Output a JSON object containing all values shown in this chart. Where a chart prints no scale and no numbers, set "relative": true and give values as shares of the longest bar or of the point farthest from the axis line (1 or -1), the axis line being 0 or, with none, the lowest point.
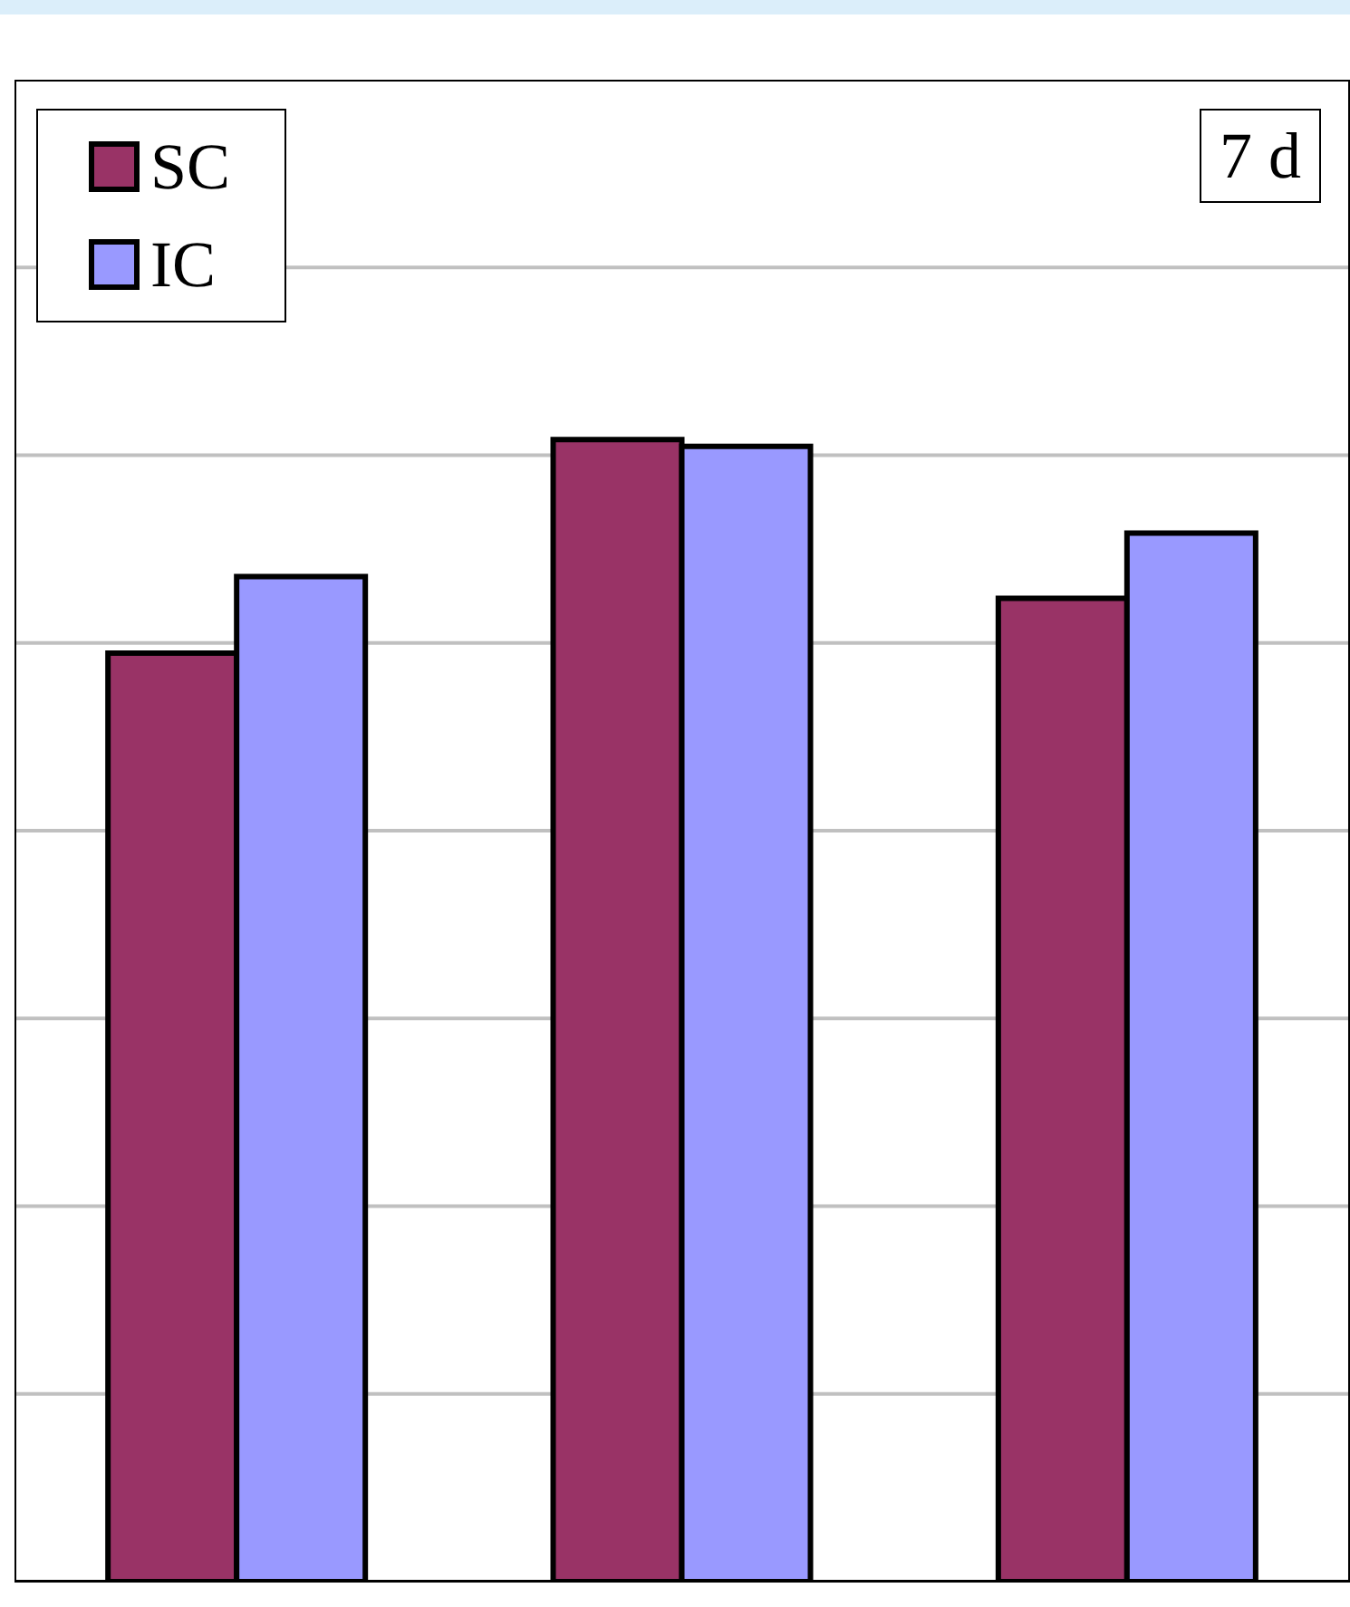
{
  "chart_data": {
    "type": "bar",
    "relative": true,
    "categories": [
      null,
      null,
      null
    ],
    "series": [
      {
        "name": "SC",
        "color": "#993366",
        "values": [
          0.813,
          1,
          0.861
        ]
      },
      {
        "name": "IC",
        "color": "#9999ff",
        "values": [
          0.88,
          0.994,
          0.918
        ]
      }
    ],
    "annotations": [
      "7 d"
    ],
    "grid": "y",
    "legend": "top left"
  }
}
